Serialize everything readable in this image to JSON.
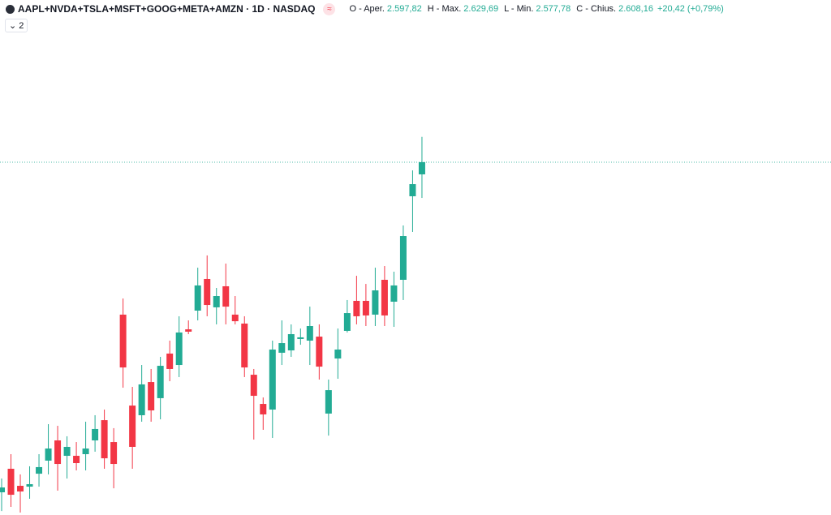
{
  "header": {
    "symbol": "AAPL+NVDA+TSLA+MSFT+GOOG+META+AMZN · 1D · NASDAQ",
    "badge": "≈",
    "ohlc": [
      {
        "name": "O - Aper.",
        "value": 2597.82,
        "value_label": "2.597,82"
      },
      {
        "name": "H - Max.",
        "value": 2629.69,
        "value_label": "2.629,69"
      },
      {
        "name": "L - Min.",
        "value": 2577.78,
        "value_label": "2.577,78"
      },
      {
        "name": "C - Chius.",
        "value": 2608.16,
        "value_label": "2.608,16"
      }
    ],
    "change": {
      "value": 20.42,
      "value_label": "+20,42"
    },
    "change_pct": {
      "value": 0.79,
      "value_label": "(+0,79%)"
    },
    "indicator_count": 2
  },
  "chart_data": {
    "type": "candlestick",
    "up_color": "#22ab94",
    "down_color": "#f23645",
    "ylim": [
      2308.3,
      2746.0
    ],
    "open": [
      2327.6,
      2347.6,
      2333.1,
      2332.4,
      2343.4,
      2354.5,
      2371.7,
      2358.6,
      2358.6,
      2360.0,
      2371.7,
      2388.9,
      2370.3,
      2478.6,
      2401.3,
      2393.1,
      2421.3,
      2407.6,
      2445.5,
      2435.8,
      2466.1,
      2482.0,
      2508.9,
      2484.8,
      2502.7,
      2478.6,
      2471.0,
      2427.5,
      2402.7,
      2397.9,
      2446.2,
      2448.2,
      2457.9,
      2456.5,
      2459.9,
      2394.5,
      2441.3,
      2464.8,
      2490.3,
      2490.3,
      2478.6,
      2508.2,
      2489.6,
      2508.2,
      2579.2,
      2597.82
    ],
    "high": [
      2339.3,
      2360.0,
      2342.8,
      2349.7,
      2360.0,
      2385.5,
      2384.1,
      2375.2,
      2370.3,
      2387.6,
      2393.1,
      2397.9,
      2382.1,
      2492.3,
      2417.2,
      2435.8,
      2432.4,
      2442.7,
      2456.5,
      2477.2,
      2473.7,
      2518.5,
      2528.9,
      2501.3,
      2522.0,
      2494.4,
      2477.2,
      2432.4,
      2408.2,
      2456.5,
      2473.7,
      2470.3,
      2466.8,
      2485.4,
      2470.3,
      2423.4,
      2466.8,
      2491.0,
      2511.6,
      2504.7,
      2518.5,
      2519.9,
      2515.1,
      2554.4,
      2601.2,
      2629.69
    ],
    "low": [
      2311.7,
      2315.2,
      2310.4,
      2322.1,
      2332.4,
      2342.8,
      2329.0,
      2339.3,
      2346.2,
      2346.2,
      2362.1,
      2347.6,
      2331.0,
      2416.5,
      2347.6,
      2387.6,
      2387.6,
      2389.6,
      2422.0,
      2425.5,
      2462.0,
      2473.7,
      2477.2,
      2470.3,
      2470.3,
      2470.3,
      2425.5,
      2372.4,
      2380.7,
      2373.8,
      2435.8,
      2442.7,
      2453.0,
      2435.8,
      2423.4,
      2375.8,
      2424.1,
      2463.4,
      2470.3,
      2468.9,
      2468.9,
      2468.9,
      2468.2,
      2491.0,
      2548.9,
      2577.78
    ],
    "close": [
      2331.7,
      2325.5,
      2328.3,
      2334.5,
      2349.0,
      2364.8,
      2351.7,
      2366.2,
      2352.4,
      2364.8,
      2381.4,
      2356.5,
      2351.7,
      2433.7,
      2366.2,
      2419.3,
      2397.2,
      2435.1,
      2432.4,
      2463.4,
      2464.1,
      2503.4,
      2486.8,
      2494.4,
      2485.4,
      2473.0,
      2433.7,
      2409.6,
      2393.8,
      2448.9,
      2454.4,
      2462.0,
      2459.3,
      2468.9,
      2434.4,
      2414.4,
      2448.9,
      2479.9,
      2477.2,
      2477.9,
      2499.2,
      2477.9,
      2503.4,
      2545.4,
      2589.5,
      2608.16
    ]
  }
}
